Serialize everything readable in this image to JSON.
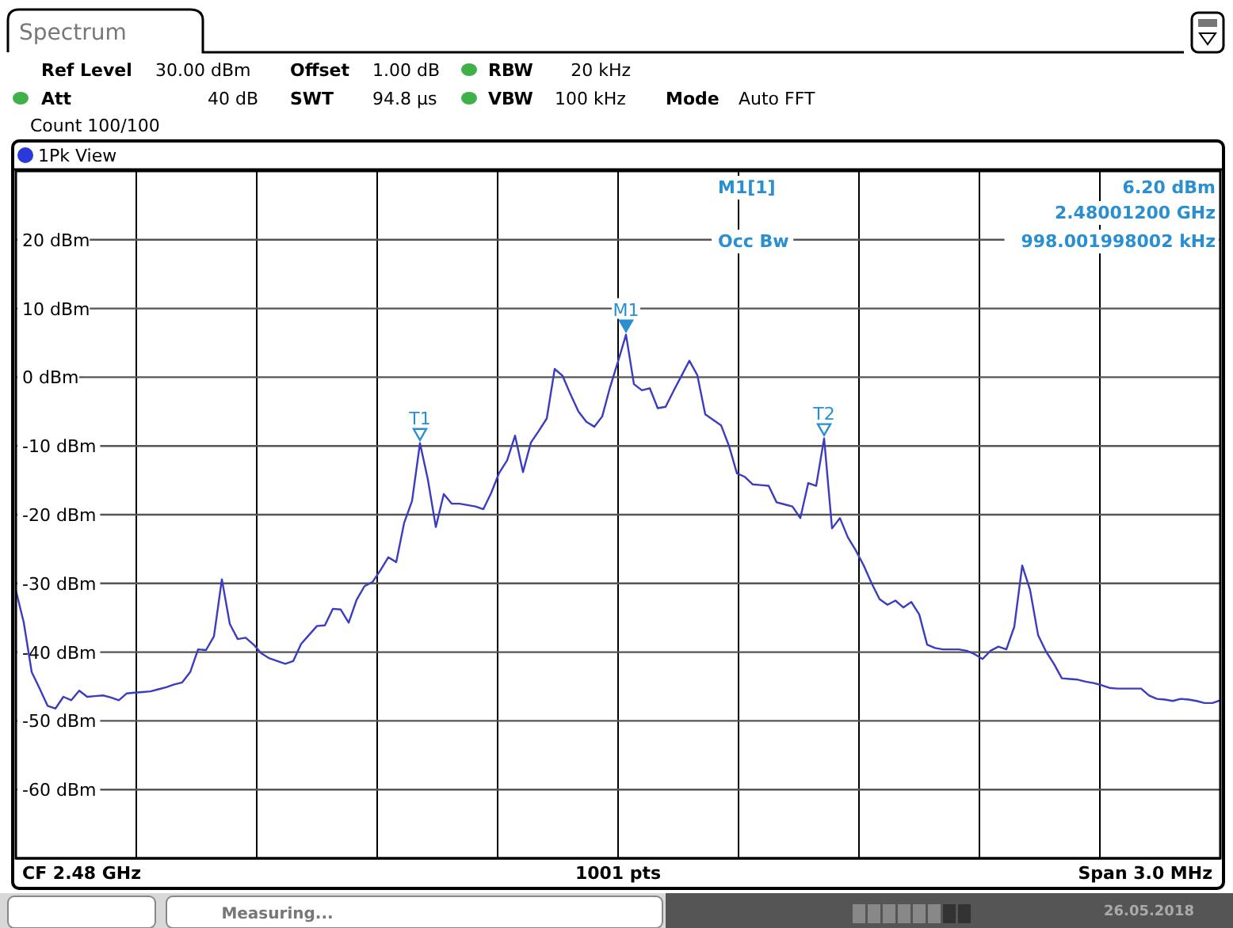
{
  "chart_data": {
    "type": "line",
    "title": "Spectrum",
    "subtitle": "1Pk View",
    "annotations": [
      "Ref Level",
      "30.00 dBm",
      "Offset",
      "1.00 dB",
      "RBW",
      "20 kHz",
      "Att",
      "40 dB",
      "SWT",
      "94.8 µs",
      "VBW",
      "100 kHz",
      "Mode",
      "Auto FFT",
      "Count 100/100",
      "M1[1]",
      "6.20 dBm",
      "2.48001200 GHz",
      "Occ Bw",
      "998.001998002 kHz",
      "CF 2.48 GHz",
      "1001 pts",
      "Span 3.0 MHz",
      "Measuring...",
      "26.05.2018",
      {
        "text": "M1",
        "y": 6.2
      },
      {
        "text": "T1",
        "y": -9.6
      },
      {
        "text": "T2",
        "y": -8.9
      }
    ],
    "categories": [
      null,
      null,
      null,
      null,
      null,
      null,
      null,
      null,
      null,
      null,
      null,
      null,
      null,
      null,
      null,
      null,
      null,
      null,
      null,
      null,
      null,
      null,
      null,
      null,
      null,
      null,
      null,
      null,
      null,
      null,
      null,
      null,
      null,
      null,
      null,
      null,
      null,
      null,
      null,
      null,
      null,
      null,
      null,
      null,
      null,
      null,
      null,
      null,
      null,
      null,
      null,
      null,
      null,
      null,
      null,
      null,
      null,
      null,
      null,
      null,
      null,
      null,
      null,
      null,
      null,
      null,
      null,
      null,
      null,
      null,
      null,
      null,
      null,
      null,
      null,
      null,
      null,
      null,
      null,
      null,
      null,
      null,
      null,
      null,
      null,
      null,
      null,
      null,
      null,
      null,
      null,
      null,
      null,
      null,
      null,
      null,
      null,
      null,
      null,
      null,
      null,
      null,
      null,
      null,
      null,
      null,
      null,
      null,
      null,
      null,
      null,
      null,
      null,
      null,
      null,
      null,
      null,
      null,
      null,
      null,
      null,
      null,
      null,
      null,
      null,
      null,
      null,
      null,
      null,
      null,
      null,
      null,
      null,
      null,
      null,
      null,
      null,
      null,
      null,
      null,
      null,
      null,
      null,
      null,
      null,
      null,
      null,
      null,
      null,
      null,
      null,
      null,
      null
    ],
    "series": [
      {
        "color": "#3c3cc0",
        "values": [
          -31,
          -35.7,
          -42.9,
          -45.3,
          -47.8,
          -48.2,
          -46.5,
          -47,
          -45.6,
          -46.5,
          -46.4,
          -46.3,
          -46.6,
          -47,
          -46,
          -45.9,
          -45.8,
          -45.7,
          -45.4,
          -45.1,
          -44.7,
          -44.4,
          -42.9,
          -39.6,
          -39.7,
          -37.7,
          -29.4,
          -35.9,
          -38.1,
          -37.9,
          -38.9,
          -40.2,
          -40.9,
          -41.3,
          -41.7,
          -41.3,
          -38.8,
          -37.5,
          -36.2,
          -36.1,
          -33.7,
          -33.8,
          -35.7,
          -32.4,
          -30.4,
          -29.8,
          -28.1,
          -26.2,
          -26.9,
          -21.2,
          -18,
          -9.6,
          -14.9,
          -21.8,
          -17,
          -18.4,
          -18.4,
          -18.6,
          -18.8,
          -19.2,
          -16.8,
          -13.9,
          -12.1,
          -8.5,
          -13.8,
          -9.5,
          -7.8,
          -6,
          1.2,
          0.2,
          -2.5,
          -5,
          -6.5,
          -7.2,
          -5.7,
          -1.4,
          2.3,
          6.2,
          -1,
          -1.9,
          -1.6,
          -4.5,
          -4.3,
          -2,
          0.2,
          2.4,
          0.3,
          -5.4,
          -6.2,
          -7,
          -10,
          -14,
          -14.5,
          -15.6,
          -15.7,
          -15.8,
          -18.2,
          -18.5,
          -18.8,
          -20.5,
          -15.4,
          -15.8,
          -8.9,
          -22,
          -20.5,
          -23.3,
          -25.2,
          -27.4,
          -30,
          -32.3,
          -33.1,
          -32.5,
          -33.5,
          -32.7,
          -34.5,
          -38.9,
          -39.4,
          -39.6,
          -39.6,
          -39.6,
          -39.8,
          -40.3,
          -41,
          -39.8,
          -39.2,
          -39.6,
          -36.3,
          -27.4,
          -31,
          -37.5,
          -39.9,
          -41.7,
          -43.8,
          -43.9,
          -44,
          -44.3,
          -44.5,
          -44.8,
          -45.2,
          -45.3,
          -45.3,
          -45.3,
          -45.3,
          -46.3,
          -46.8,
          -46.9,
          -47.1,
          -46.8,
          -46.9,
          -47.1,
          -47.4,
          -47.4,
          -47
        ]
      }
    ],
    "ylim": [
      -70,
      30
    ],
    "yticks": [
      {
        "value": 20,
        "label": "20 dBm"
      },
      {
        "value": 10,
        "label": "10 dBm"
      },
      {
        "value": 0,
        "label": "0 dBm"
      },
      {
        "value": -10,
        "label": "-10 dBm"
      },
      {
        "value": -20,
        "label": "-20 dBm"
      },
      {
        "value": -30,
        "label": "-30 dBm"
      },
      {
        "value": -40,
        "label": "-40 dBm"
      },
      {
        "value": -50,
        "label": "-50 dBm"
      },
      {
        "value": -60,
        "label": "-60 dBm"
      }
    ],
    "tick_labels": "y",
    "grid": true,
    "marker": "none",
    "line_style": "solid"
  }
}
